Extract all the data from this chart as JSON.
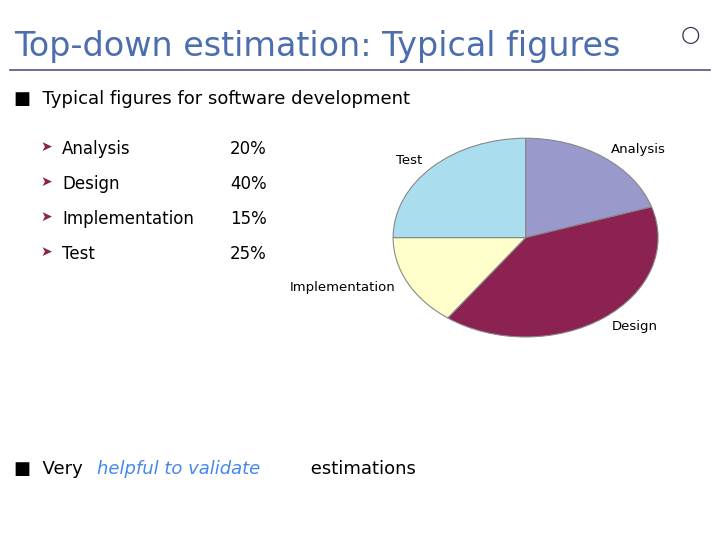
{
  "title": "Top-down estimation: Typical figures",
  "title_color": "#4C6DAE",
  "background_color": "#FFFFFF",
  "bullet1": "Typical figures for software development",
  "items": [
    "Analysis",
    "Design",
    "Implementation",
    "Test"
  ],
  "percentages": [
    "20%",
    "40%",
    "15%",
    "25%"
  ],
  "pie_values": [
    20,
    40,
    15,
    25
  ],
  "pie_labels": [
    "Analysis",
    "Design",
    "Implementation",
    "Test"
  ],
  "pie_colors": [
    "#9999CC",
    "#8B2252",
    "#FFFFCC",
    "#AADDEE"
  ],
  "bullet2_highlight": "helpful to validate",
  "highlight_color": "#4488EE",
  "sub_bullet_color": "#8B2252",
  "item_color": "#000000",
  "percent_color": "#000000",
  "title_fontsize": 24,
  "body_fontsize": 13,
  "sub_fontsize": 12
}
